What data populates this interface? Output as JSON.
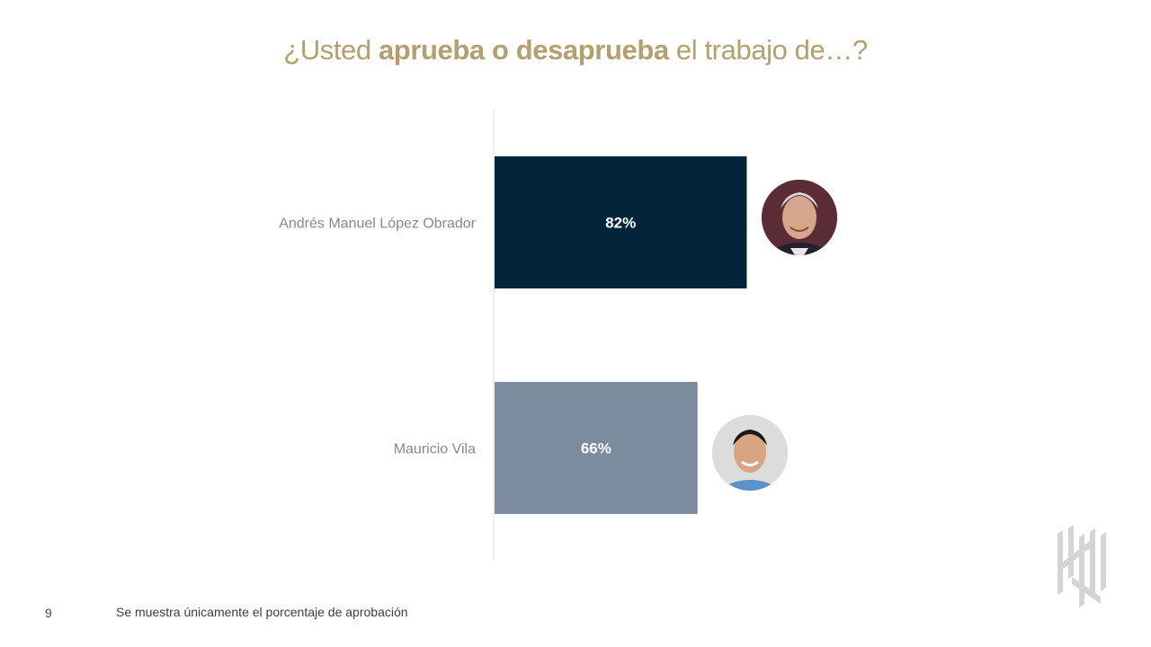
{
  "title": {
    "prefix": "¿Usted ",
    "bold": "aprueba o desaprueba",
    "suffix": " el trabajo de…?"
  },
  "chart_data": {
    "type": "bar",
    "orientation": "horizontal",
    "categories": [
      "Andrés Manuel López Obrador",
      "Mauricio Vila"
    ],
    "values": [
      82,
      66
    ],
    "value_labels": [
      "82%",
      "66%"
    ],
    "colors": [
      "#022539",
      "#7a8c9e"
    ],
    "xlim": [
      0,
      100
    ],
    "grid": false
  },
  "page_number": "9",
  "footnote": "Se muestra únicamente el porcentaje de aprobación",
  "icons": {
    "avatar_1": "portrait-photo-icon",
    "avatar_2": "portrait-photo-icon",
    "logo": "brand-logo-icon"
  }
}
